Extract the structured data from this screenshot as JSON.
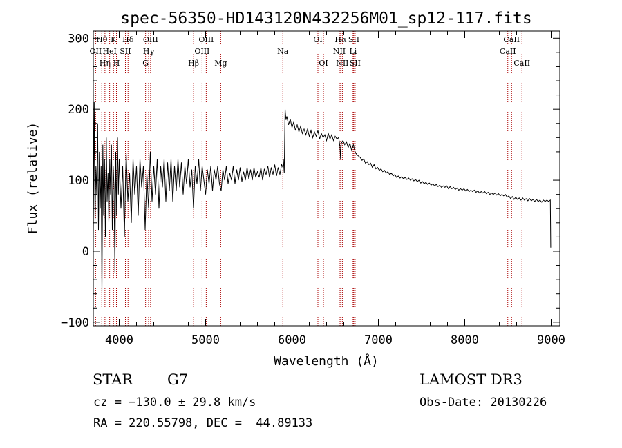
{
  "chart_data": {
    "type": "line",
    "title": "spec-56350-HD143120N432256M01_sp12-117.fits",
    "xlabel": "Wavelength (Å)",
    "ylabel": "Flux (relative)",
    "xlim": [
      3700,
      9100
    ],
    "ylim": [
      -105,
      310
    ],
    "xticks": [
      4000,
      5000,
      6000,
      7000,
      8000,
      9000
    ],
    "yticks": [
      -100,
      0,
      100,
      200,
      300
    ],
    "grid": false,
    "series": [
      {
        "name": "flux",
        "points": [
          [
            3700,
            20
          ],
          [
            3710,
            210
          ],
          [
            3720,
            40
          ],
          [
            3730,
            120
          ],
          [
            3740,
            80
          ],
          [
            3750,
            180
          ],
          [
            3760,
            30
          ],
          [
            3770,
            140
          ],
          [
            3780,
            60
          ],
          [
            3790,
            120
          ],
          [
            3800,
            -60
          ],
          [
            3810,
            150
          ],
          [
            3820,
            50
          ],
          [
            3830,
            130
          ],
          [
            3840,
            20
          ],
          [
            3850,
            160
          ],
          [
            3860,
            70
          ],
          [
            3870,
            110
          ],
          [
            3880,
            40
          ],
          [
            3890,
            130
          ],
          [
            3900,
            80
          ],
          [
            3910,
            150
          ],
          [
            3920,
            30
          ],
          [
            3930,
            120
          ],
          [
            3940,
            90
          ],
          [
            3950,
            -30
          ],
          [
            3960,
            140
          ],
          [
            3970,
            50
          ],
          [
            3980,
            160
          ],
          [
            3990,
            80
          ],
          [
            4000,
            130
          ],
          [
            4020,
            60
          ],
          [
            4040,
            120
          ],
          [
            4060,
            20
          ],
          [
            4080,
            140
          ],
          [
            4100,
            70
          ],
          [
            4120,
            110
          ],
          [
            4140,
            40
          ],
          [
            4160,
            130
          ],
          [
            4180,
            80
          ],
          [
            4200,
            120
          ],
          [
            4220,
            50
          ],
          [
            4240,
            130
          ],
          [
            4260,
            90
          ],
          [
            4280,
            120
          ],
          [
            4300,
            30
          ],
          [
            4320,
            110
          ],
          [
            4340,
            60
          ],
          [
            4360,
            140
          ],
          [
            4380,
            70
          ],
          [
            4400,
            120
          ],
          [
            4420,
            80
          ],
          [
            4440,
            130
          ],
          [
            4460,
            60
          ],
          [
            4480,
            120
          ],
          [
            4500,
            90
          ],
          [
            4520,
            130
          ],
          [
            4540,
            70
          ],
          [
            4560,
            125
          ],
          [
            4580,
            85
          ],
          [
            4600,
            130
          ],
          [
            4620,
            70
          ],
          [
            4640,
            120
          ],
          [
            4660,
            85
          ],
          [
            4680,
            130
          ],
          [
            4700,
            90
          ],
          [
            4720,
            125
          ],
          [
            4740,
            80
          ],
          [
            4760,
            120
          ],
          [
            4780,
            95
          ],
          [
            4800,
            130
          ],
          [
            4820,
            90
          ],
          [
            4840,
            115
          ],
          [
            4860,
            60
          ],
          [
            4880,
            120
          ],
          [
            4900,
            95
          ],
          [
            4920,
            130
          ],
          [
            4940,
            85
          ],
          [
            4960,
            120
          ],
          [
            4980,
            100
          ],
          [
            5000,
            80
          ],
          [
            5020,
            115
          ],
          [
            5040,
            95
          ],
          [
            5060,
            120
          ],
          [
            5080,
            85
          ],
          [
            5100,
            115
          ],
          [
            5120,
            100
          ],
          [
            5140,
            120
          ],
          [
            5160,
            95
          ],
          [
            5180,
            85
          ],
          [
            5200,
            115
          ],
          [
            5220,
            100
          ],
          [
            5240,
            120
          ],
          [
            5260,
            95
          ],
          [
            5280,
            110
          ],
          [
            5300,
            100
          ],
          [
            5320,
            120
          ],
          [
            5340,
            95
          ],
          [
            5360,
            115
          ],
          [
            5380,
            100
          ],
          [
            5400,
            118
          ],
          [
            5420,
            98
          ],
          [
            5440,
            112
          ],
          [
            5460,
            100
          ],
          [
            5480,
            118
          ],
          [
            5500,
            102
          ],
          [
            5520,
            115
          ],
          [
            5540,
            100
          ],
          [
            5560,
            118
          ],
          [
            5580,
            104
          ],
          [
            5600,
            112
          ],
          [
            5620,
            104
          ],
          [
            5640,
            118
          ],
          [
            5660,
            100
          ],
          [
            5680,
            116
          ],
          [
            5700,
            108
          ],
          [
            5720,
            120
          ],
          [
            5740,
            104
          ],
          [
            5760,
            118
          ],
          [
            5780,
            108
          ],
          [
            5800,
            122
          ],
          [
            5820,
            106
          ],
          [
            5840,
            118
          ],
          [
            5860,
            108
          ],
          [
            5880,
            122
          ],
          [
            5895,
            118
          ],
          [
            5900,
            130
          ],
          [
            5910,
            110
          ],
          [
            5920,
            200
          ],
          [
            5930,
            185
          ],
          [
            5940,
            190
          ],
          [
            5960,
            178
          ],
          [
            5980,
            186
          ],
          [
            6000,
            174
          ],
          [
            6020,
            182
          ],
          [
            6040,
            170
          ],
          [
            6060,
            178
          ],
          [
            6080,
            168
          ],
          [
            6100,
            176
          ],
          [
            6120,
            166
          ],
          [
            6140,
            172
          ],
          [
            6160,
            164
          ],
          [
            6180,
            172
          ],
          [
            6200,
            162
          ],
          [
            6220,
            170
          ],
          [
            6240,
            160
          ],
          [
            6260,
            168
          ],
          [
            6280,
            162
          ],
          [
            6300,
            170
          ],
          [
            6320,
            158
          ],
          [
            6340,
            166
          ],
          [
            6360,
            160
          ],
          [
            6380,
            164
          ],
          [
            6400,
            156
          ],
          [
            6420,
            166
          ],
          [
            6440,
            158
          ],
          [
            6460,
            164
          ],
          [
            6480,
            156
          ],
          [
            6500,
            162
          ],
          [
            6520,
            158
          ],
          [
            6540,
            160
          ],
          [
            6555,
            148
          ],
          [
            6562,
            130
          ],
          [
            6570,
            152
          ],
          [
            6590,
            156
          ],
          [
            6610,
            150
          ],
          [
            6630,
            154
          ],
          [
            6650,
            146
          ],
          [
            6670,
            152
          ],
          [
            6690,
            142
          ],
          [
            6710,
            150
          ],
          [
            6730,
            140
          ],
          [
            6750,
            136
          ],
          [
            6770,
            134
          ],
          [
            6790,
            132
          ],
          [
            6810,
            128
          ],
          [
            6830,
            130
          ],
          [
            6850,
            124
          ],
          [
            6870,
            126
          ],
          [
            6890,
            122
          ],
          [
            6910,
            124
          ],
          [
            6930,
            118
          ],
          [
            6950,
            122
          ],
          [
            6970,
            116
          ],
          [
            6990,
            118
          ],
          [
            7010,
            114
          ],
          [
            7030,
            116
          ],
          [
            7050,
            112
          ],
          [
            7070,
            114
          ],
          [
            7090,
            110
          ],
          [
            7110,
            112
          ],
          [
            7130,
            108
          ],
          [
            7150,
            110
          ],
          [
            7170,
            106
          ],
          [
            7190,
            108
          ],
          [
            7210,
            104
          ],
          [
            7230,
            106
          ],
          [
            7250,
            103
          ],
          [
            7270,
            105
          ],
          [
            7290,
            102
          ],
          [
            7310,
            104
          ],
          [
            7330,
            101
          ],
          [
            7350,
            103
          ],
          [
            7370,
            100
          ],
          [
            7390,
            102
          ],
          [
            7410,
            99
          ],
          [
            7430,
            101
          ],
          [
            7450,
            98
          ],
          [
            7470,
            100
          ],
          [
            7490,
            96
          ],
          [
            7510,
            98
          ],
          [
            7530,
            95
          ],
          [
            7550,
            97
          ],
          [
            7570,
            94
          ],
          [
            7590,
            96
          ],
          [
            7610,
            93
          ],
          [
            7630,
            95
          ],
          [
            7650,
            92
          ],
          [
            7670,
            94
          ],
          [
            7690,
            91
          ],
          [
            7710,
            93
          ],
          [
            7730,
            90
          ],
          [
            7750,
            92
          ],
          [
            7770,
            90
          ],
          [
            7790,
            92
          ],
          [
            7810,
            88
          ],
          [
            7830,
            91
          ],
          [
            7850,
            88
          ],
          [
            7870,
            90
          ],
          [
            7890,
            87
          ],
          [
            7910,
            89
          ],
          [
            7930,
            86
          ],
          [
            7950,
            88
          ],
          [
            7970,
            86
          ],
          [
            7990,
            88
          ],
          [
            8010,
            85
          ],
          [
            8030,
            87
          ],
          [
            8050,
            84
          ],
          [
            8070,
            86
          ],
          [
            8090,
            84
          ],
          [
            8110,
            86
          ],
          [
            8130,
            83
          ],
          [
            8150,
            85
          ],
          [
            8170,
            82
          ],
          [
            8190,
            84
          ],
          [
            8210,
            82
          ],
          [
            8230,
            84
          ],
          [
            8250,
            81
          ],
          [
            8270,
            83
          ],
          [
            8290,
            80
          ],
          [
            8310,
            82
          ],
          [
            8330,
            80
          ],
          [
            8350,
            82
          ],
          [
            8370,
            79
          ],
          [
            8390,
            81
          ],
          [
            8410,
            78
          ],
          [
            8430,
            80
          ],
          [
            8450,
            78
          ],
          [
            8470,
            80
          ],
          [
            8490,
            76
          ],
          [
            8510,
            78
          ],
          [
            8530,
            74
          ],
          [
            8550,
            77
          ],
          [
            8570,
            73
          ],
          [
            8590,
            76
          ],
          [
            8610,
            73
          ],
          [
            8630,
            75
          ],
          [
            8650,
            72
          ],
          [
            8670,
            75
          ],
          [
            8690,
            72
          ],
          [
            8710,
            74
          ],
          [
            8730,
            71
          ],
          [
            8750,
            74
          ],
          [
            8770,
            71
          ],
          [
            8790,
            73
          ],
          [
            8810,
            70
          ],
          [
            8830,
            73
          ],
          [
            8850,
            70
          ],
          [
            8870,
            72
          ],
          [
            8890,
            69
          ],
          [
            8910,
            72
          ],
          [
            8930,
            70
          ],
          [
            8950,
            72
          ],
          [
            8970,
            70
          ],
          [
            8990,
            72
          ],
          [
            8995,
            5
          ]
        ]
      }
    ],
    "line_markers": [
      {
        "label": "OII",
        "x": 3727,
        "row": 1
      },
      {
        "label": "Hθ",
        "x": 3798,
        "row": 0
      },
      {
        "label": "Hη",
        "x": 3835,
        "row": 2
      },
      {
        "label": "HeI",
        "x": 3889,
        "row": 1
      },
      {
        "label": "K",
        "x": 3934,
        "row": 0
      },
      {
        "label": "H",
        "x": 3968,
        "row": 2
      },
      {
        "label": "SII",
        "x": 4072,
        "row": 1
      },
      {
        "label": "Hδ",
        "x": 4102,
        "row": 0
      },
      {
        "label": "G",
        "x": 4305,
        "row": 2
      },
      {
        "label": "Hγ",
        "x": 4340,
        "row": 1
      },
      {
        "label": "OIII",
        "x": 4363,
        "row": 0
      },
      {
        "label": "Hβ",
        "x": 4861,
        "row": 2
      },
      {
        "label": "OIII",
        "x": 4959,
        "row": 1
      },
      {
        "label": "OIII",
        "x": 5007,
        "row": 0
      },
      {
        "label": "Mg",
        "x": 5175,
        "row": 2
      },
      {
        "label": "Na",
        "x": 5894,
        "row": 1
      },
      {
        "label": "OI",
        "x": 6300,
        "row": 0
      },
      {
        "label": "OI",
        "x": 6364,
        "row": 2
      },
      {
        "label": "NII",
        "x": 6548,
        "row": 1
      },
      {
        "label": "Hα",
        "x": 6563,
        "row": 0
      },
      {
        "label": "NII",
        "x": 6583,
        "row": 2
      },
      {
        "label": "Li",
        "x": 6707,
        "row": 1
      },
      {
        "label": "SII",
        "x": 6716,
        "row": 0
      },
      {
        "label": "SII",
        "x": 6731,
        "row": 2
      },
      {
        "label": "CaII",
        "x": 8498,
        "row": 1
      },
      {
        "label": "CaII",
        "x": 8542,
        "row": 0
      },
      {
        "label": "CaII",
        "x": 8662,
        "row": 2
      }
    ],
    "marker_color": "#aa0000"
  },
  "info": {
    "class_label": "STAR",
    "subclass": "G7",
    "survey": "LAMOST DR3",
    "cz_line": "cz = -130.0 ± 29.8 km/s",
    "obs_date": "Obs-Date: 20130226",
    "coords": "RA = 220.55798, DEC =  44.89133"
  }
}
